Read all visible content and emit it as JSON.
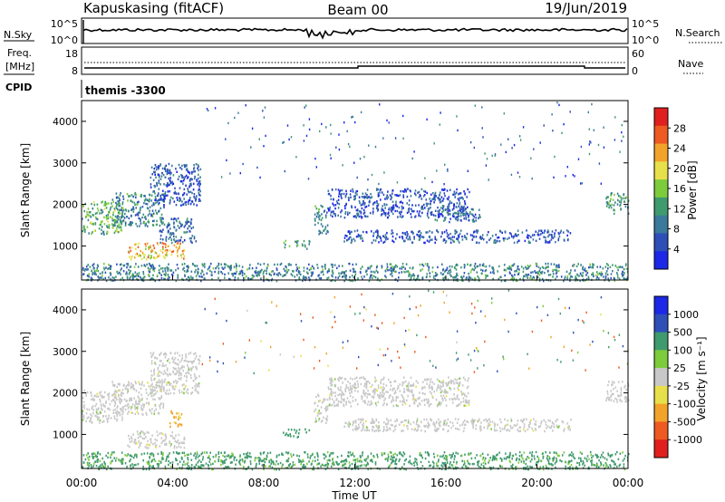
{
  "header": {
    "station": "Kapuskasing (fitACF)",
    "beam": "Beam 00",
    "date": "19/Jun/2019",
    "program": "themis -3300"
  },
  "top_panel": {
    "left_label": "N.Sky",
    "left_ticks": [
      "10^5",
      "10^0"
    ],
    "right_ticks": [
      "10^5",
      "10^0"
    ],
    "right_label": "N.Search",
    "right_label_style": "dotted"
  },
  "freq_panel": {
    "left_label_1": "Freq.",
    "left_label_2": "[MHz]",
    "left_ticks": [
      "18",
      "8"
    ],
    "right_ticks": [
      "60",
      "0"
    ],
    "right_label": "Nave",
    "right_label_style": "dotted",
    "cpid_label": "CPID"
  },
  "colors": {
    "power_scale": [
      "#1c28e6",
      "#2e4fb8",
      "#3a7a9a",
      "#3f9a6e",
      "#7ccc3c",
      "#e8e04a",
      "#f2a32a",
      "#ee5a22",
      "#e0201e"
    ],
    "velocity_scale": [
      "#e0201e",
      "#ee5a22",
      "#f2a32a",
      "#e8e04a",
      "#c8c8c8",
      "#7ccc3c",
      "#3f9a6e",
      "#2e4fb8",
      "#1c28e6"
    ],
    "ground_scatter": "#c8c8c8"
  },
  "chart_data": [
    {
      "type": "heatmap",
      "panel": "power",
      "ylabel": "Slant Range [km]",
      "yticks": [
        "4000",
        "3000",
        "2000",
        "1000"
      ],
      "ylim": [
        180,
        4500
      ],
      "xlim": [
        0,
        24
      ],
      "colorbar_label": "Power [dB]",
      "colorbar_ticks": [
        "28",
        "24",
        "20",
        "16",
        "12",
        "8",
        "4"
      ],
      "colorbar_range": [
        0,
        32
      ],
      "features": [
        {
          "t_start": 0.0,
          "t_end": 1.8,
          "range_start": 1300,
          "range_end": 2100,
          "level": 14
        },
        {
          "t_start": 1.3,
          "t_end": 3.6,
          "range_start": 1500,
          "range_end": 2300,
          "level": 10
        },
        {
          "t_start": 3.0,
          "t_end": 5.2,
          "range_start": 2000,
          "range_end": 3000,
          "level": 6
        },
        {
          "t_start": 2.0,
          "t_end": 4.5,
          "range_start": 700,
          "range_end": 1100,
          "level": 22
        },
        {
          "t_start": 3.4,
          "t_end": 5.0,
          "range_start": 1100,
          "range_end": 1700,
          "level": 8
        },
        {
          "t_start": 8.8,
          "t_end": 10.0,
          "range_start": 950,
          "range_end": 1150,
          "level": 12
        },
        {
          "t_start": 10.2,
          "t_end": 10.8,
          "range_start": 1300,
          "range_end": 2000,
          "level": 10
        },
        {
          "t_start": 10.8,
          "t_end": 17.0,
          "range_start": 1700,
          "range_end": 2400,
          "level": 5
        },
        {
          "t_start": 11.5,
          "t_end": 21.5,
          "range_start": 1100,
          "range_end": 1400,
          "level": 6
        },
        {
          "t_start": 15.5,
          "t_end": 17.5,
          "range_start": 1600,
          "range_end": 2000,
          "level": 8
        },
        {
          "t_start": 23.0,
          "t_end": 24.0,
          "range_start": 1800,
          "range_end": 2300,
          "level": 12
        },
        {
          "t_start": 0.0,
          "t_end": 24.0,
          "range_start": 180,
          "range_end": 600,
          "level": 10
        }
      ]
    },
    {
      "type": "heatmap",
      "panel": "velocity",
      "ylabel": "Slant Range [km]",
      "yticks": [
        "4000",
        "3000",
        "2000",
        "1000"
      ],
      "ylim": [
        180,
        4500
      ],
      "xlim": [
        0,
        24
      ],
      "xticks": [
        "00:00",
        "04:00",
        "08:00",
        "12:00",
        "16:00",
        "20:00",
        "00:00"
      ],
      "xlabel": "Time UT",
      "colorbar_label": "Velocity [m s⁻¹]",
      "colorbar_ticks": [
        "1000",
        "500",
        "100",
        "25",
        "-25",
        "-100",
        "-500",
        "-1000"
      ],
      "features": [
        {
          "t_start": 0.0,
          "t_end": 1.8,
          "range_start": 1300,
          "range_end": 2100,
          "velocity": 0
        },
        {
          "t_start": 1.3,
          "t_end": 3.6,
          "range_start": 1500,
          "range_end": 2300,
          "velocity": 0
        },
        {
          "t_start": 3.0,
          "t_end": 5.2,
          "range_start": 2000,
          "range_end": 3000,
          "velocity": 0
        },
        {
          "t_start": 2.0,
          "t_end": 4.5,
          "range_start": 700,
          "range_end": 1100,
          "velocity": 0
        },
        {
          "t_start": 3.8,
          "t_end": 4.4,
          "range_start": 1200,
          "range_end": 1600,
          "velocity": -150
        },
        {
          "t_start": 8.8,
          "t_end": 10.0,
          "range_start": 950,
          "range_end": 1150,
          "velocity": 200
        },
        {
          "t_start": 10.2,
          "t_end": 10.8,
          "range_start": 1300,
          "range_end": 2000,
          "velocity": 0
        },
        {
          "t_start": 10.8,
          "t_end": 17.0,
          "range_start": 1700,
          "range_end": 2400,
          "velocity": 0
        },
        {
          "t_start": 11.5,
          "t_end": 21.5,
          "range_start": 1100,
          "range_end": 1400,
          "velocity": 0
        },
        {
          "t_start": 23.0,
          "t_end": 24.0,
          "range_start": 1800,
          "range_end": 2300,
          "velocity": 0
        },
        {
          "t_start": 0.0,
          "t_end": 24.0,
          "range_start": 180,
          "range_end": 600,
          "velocity": 150
        }
      ]
    }
  ]
}
